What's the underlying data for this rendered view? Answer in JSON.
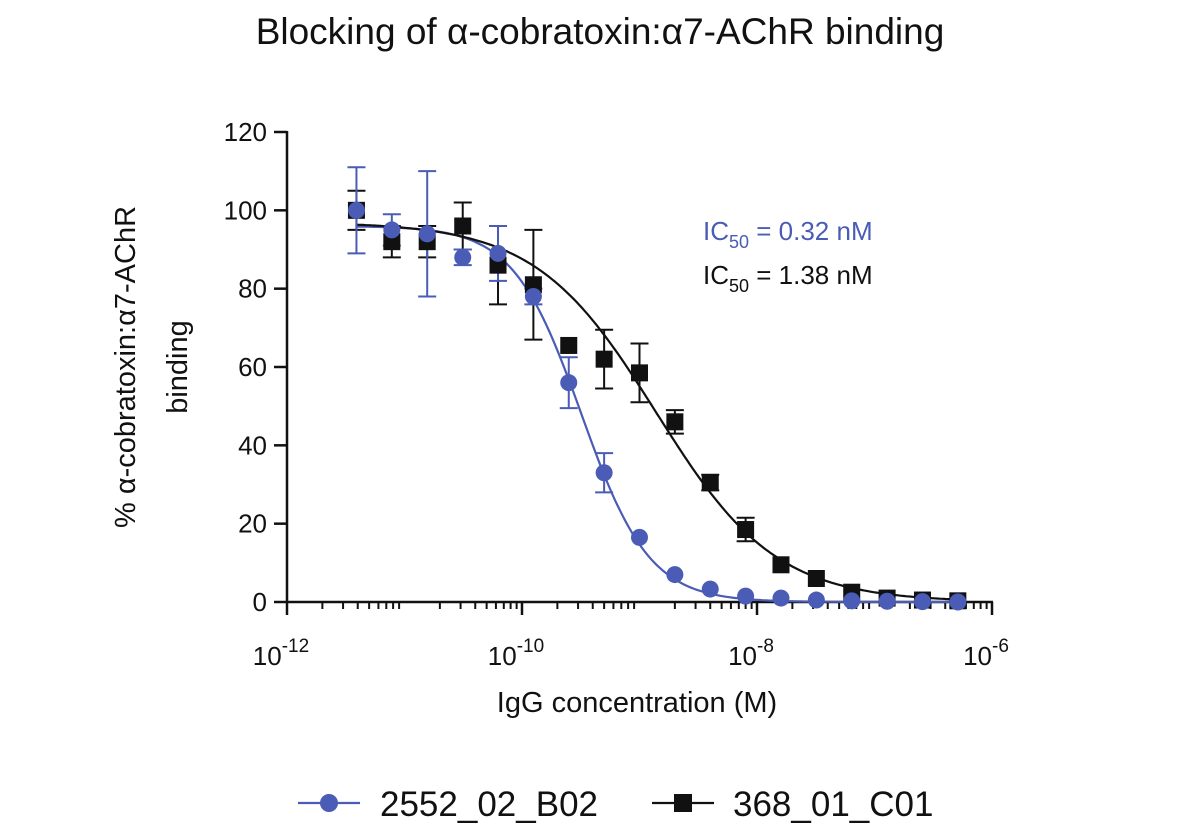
{
  "chart_data": {
    "type": "scatter",
    "title": "Blocking of α-cobratoxin:α7-AChR binding",
    "xlabel": "IgG concentration (M)",
    "ylabel_line1": "% α-cobratoxin:α7-AChR",
    "ylabel_line2": "binding",
    "x_scale": "log10",
    "xlim": [
      1e-12,
      1e-06
    ],
    "ylim": [
      0,
      120
    ],
    "x_ticks": [
      {
        "value": 1e-12,
        "base": "10",
        "exp": "-12"
      },
      {
        "value": 1e-10,
        "base": "10",
        "exp": "-10"
      },
      {
        "value": 1e-08,
        "base": "10",
        "exp": "-8"
      },
      {
        "value": 1e-06,
        "base": "10",
        "exp": "-6"
      }
    ],
    "y_ticks": [
      0,
      20,
      40,
      60,
      80,
      100,
      120
    ],
    "grid": false,
    "legend_position": "bottom-center",
    "series": [
      {
        "name": "2552_02_B02",
        "color": "#4A5CB5",
        "marker": "circle",
        "ic50_label": "IC",
        "ic50_sub": "50",
        "ic50_value": " = 0.32 nM",
        "ic50_nM": 0.32,
        "hill_slope": -1.5,
        "top": 96,
        "bottom": 0,
        "x": [
          3.9e-12,
          7.8e-12,
          1.56e-11,
          3.13e-11,
          6.25e-11,
          1.25e-10,
          2.5e-10,
          5e-10,
          1e-09,
          2e-09,
          4e-09,
          8e-09,
          1.6e-08,
          3.2e-08,
          6.4e-08,
          1.28e-07,
          2.56e-07,
          5.12e-07
        ],
        "y": [
          100,
          95,
          94,
          88,
          89,
          78,
          56,
          33,
          16.5,
          7,
          3.3,
          1.5,
          1,
          0.5,
          0.3,
          0.2,
          0.1,
          0
        ],
        "err": [
          11,
          4,
          16,
          2,
          7,
          2,
          6.5,
          5,
          1,
          1,
          1,
          1,
          0.5,
          0.5,
          0.5,
          0.5,
          0.5,
          0.5
        ]
      },
      {
        "name": "368_01_C01",
        "color": "#111111",
        "marker": "square",
        "ic50_label": "IC",
        "ic50_sub": "50",
        "ic50_value": " = 1.38 nM",
        "ic50_nM": 1.38,
        "hill_slope": -0.85,
        "top": 97,
        "bottom": 0,
        "x": [
          3.9e-12,
          7.8e-12,
          1.56e-11,
          3.13e-11,
          6.25e-11,
          1.25e-10,
          2.5e-10,
          5e-10,
          1e-09,
          2e-09,
          4e-09,
          8e-09,
          1.6e-08,
          3.2e-08,
          6.4e-08,
          1.28e-07,
          2.56e-07,
          5.12e-07
        ],
        "y": [
          100,
          92,
          92,
          96,
          86,
          81,
          65.5,
          62,
          58.5,
          46,
          30.5,
          18.5,
          9.5,
          6,
          2.5,
          1,
          0.5,
          0.3
        ],
        "err": [
          5,
          4,
          4,
          6,
          10,
          14,
          1,
          7.5,
          7.5,
          3,
          2,
          3,
          1,
          1,
          1,
          1,
          1,
          1
        ]
      }
    ]
  }
}
